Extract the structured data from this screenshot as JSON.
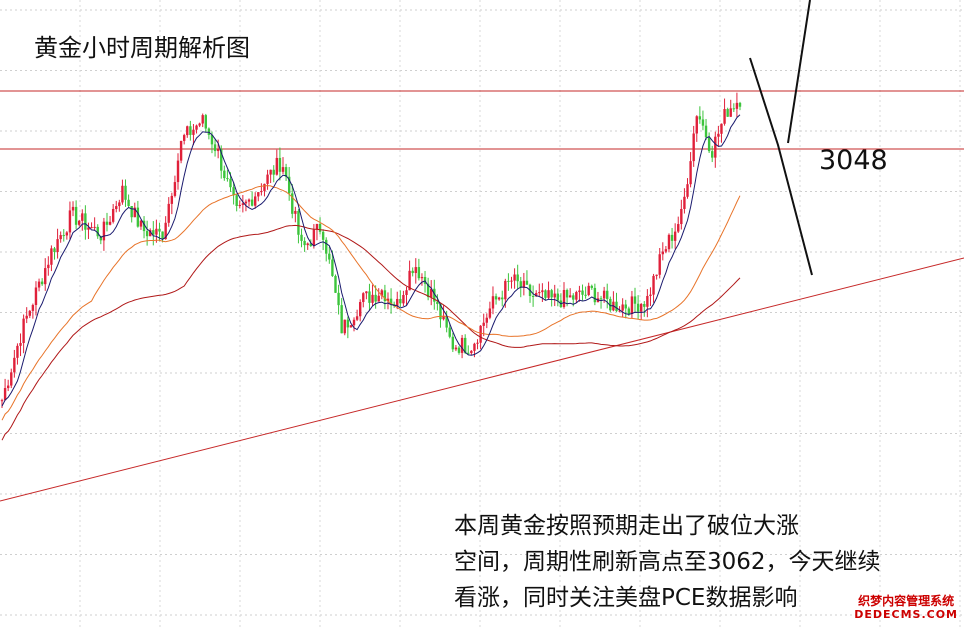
{
  "chart_data": {
    "type": "candlestick",
    "title": "黄金小时周期解析图",
    "level_label": "3048",
    "annotation": [
      "本周黄金按照预期走出了破位大涨",
      "空间，周期性刷新高点至3062，今天继续",
      "看涨，同时关注美盘PCE数据影响"
    ],
    "horizontal_levels": [
      3048,
      3062
    ],
    "ylim": [
      2962,
      3070
    ],
    "bars": 240,
    "grid": true,
    "legend": "none"
  },
  "watermark": {
    "line1": "织梦内容管理系统",
    "line2": "DEDECMS.COM"
  },
  "colors": {
    "up": "#e0203a",
    "down": "#3cc43c",
    "resistance": "#c62828",
    "trendline": "#c62828",
    "ma_fast": "#1a1a6e",
    "ma_mid": "#e8742a",
    "ma_slow": "#b01818"
  }
}
